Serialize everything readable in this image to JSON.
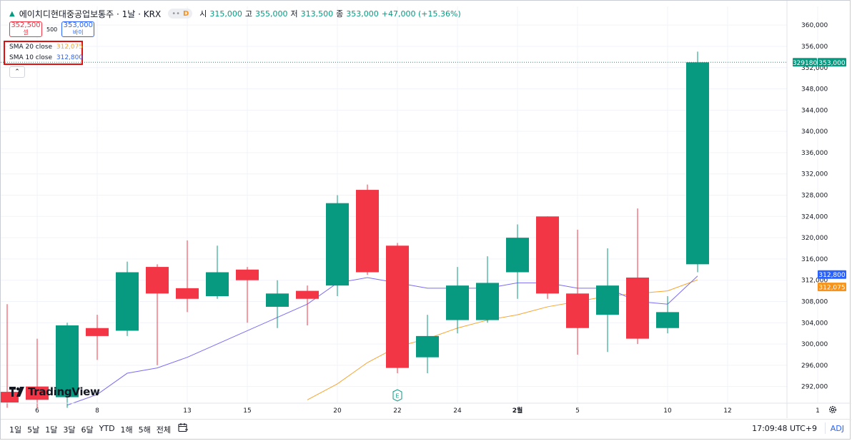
{
  "header": {
    "symbol_title": "에이치디현대중공업보통주 · 1날 · KRX",
    "badge_letter": "D",
    "ohlc": {
      "o_label": "시",
      "o": "315,000",
      "h_label": "고",
      "h": "355,000",
      "l_label": "저",
      "l": "313,500",
      "c_label": "종",
      "c": "353,000",
      "change": "+47,000 (+15.36%)"
    }
  },
  "trade": {
    "sell_price": "352,500",
    "sell_label": "셀",
    "spread": "500",
    "buy_price": "353,000",
    "buy_label": "바이"
  },
  "indicators": [
    {
      "label": "SMA 20 close",
      "value": "312,075",
      "color": "#f7a531"
    },
    {
      "label": "SMA 10 close",
      "value": "312,800",
      "color": "#2962ff"
    }
  ],
  "logo_text": "TradingView",
  "price_axis": {
    "ticks": [
      292000,
      296000,
      300000,
      304000,
      308000,
      312000,
      316000,
      320000,
      324000,
      328000,
      332000,
      336000,
      340000,
      344000,
      348000,
      352000,
      356000,
      360000
    ],
    "tick_labels": [
      "292,000",
      "296,000",
      "300,000",
      "304,000",
      "308,000",
      "312,000",
      "316,000",
      "320,000",
      "324,000",
      "328,000",
      "332,000",
      "336,000",
      "340,000",
      "344,000",
      "348,000",
      "352,000",
      "356,000",
      "360,000"
    ],
    "last_price_label": "353,000",
    "countdown_label": "329180",
    "sma10_label": "312,800",
    "sma20_label": "312,075"
  },
  "time_axis": {
    "labels": [
      {
        "i": 1,
        "text": "6"
      },
      {
        "i": 3,
        "text": "8"
      },
      {
        "i": 6,
        "text": "13"
      },
      {
        "i": 8,
        "text": "15"
      },
      {
        "i": 11,
        "text": "20"
      },
      {
        "i": 13,
        "text": "22"
      },
      {
        "i": 15,
        "text": "24"
      },
      {
        "i": 17,
        "text": "2월"
      },
      {
        "i": 19,
        "text": "5"
      },
      {
        "i": 22,
        "text": "10"
      },
      {
        "i": 24,
        "text": "12"
      },
      {
        "i": 27,
        "text": "1"
      }
    ],
    "earnings_marker": "E"
  },
  "bottom_bar": {
    "ranges": [
      "1일",
      "5날",
      "1달",
      "3달",
      "6달",
      "YTD",
      "1해",
      "5해",
      "전체"
    ],
    "clock": "17:09:48 UTC+9",
    "adj": "ADJ"
  },
  "colors": {
    "up": "#089981",
    "down": "#f23645",
    "sma10": "#7b6cf6",
    "sma20": "#f7a531"
  },
  "chart_data": {
    "type": "candlestick",
    "ylim": [
      289000,
      361500
    ],
    "candles": [
      {
        "o": 291000,
        "h": 307500,
        "l": 288000,
        "c": 289000
      },
      {
        "o": 292000,
        "h": 301000,
        "l": 288000,
        "c": 289500
      },
      {
        "o": 290000,
        "h": 304000,
        "l": 288000,
        "c": 303500
      },
      {
        "o": 303000,
        "h": 305500,
        "l": 297000,
        "c": 301500
      },
      {
        "o": 302500,
        "h": 315500,
        "l": 301500,
        "c": 313500
      },
      {
        "o": 314500,
        "h": 315000,
        "l": 296000,
        "c": 309500
      },
      {
        "o": 310500,
        "h": 319500,
        "l": 306000,
        "c": 308500
      },
      {
        "o": 309000,
        "h": 318500,
        "l": 308500,
        "c": 313500
      },
      {
        "o": 314000,
        "h": 314500,
        "l": 304000,
        "c": 312000
      },
      {
        "o": 307000,
        "h": 312000,
        "l": 303000,
        "c": 309500
      },
      {
        "o": 310000,
        "h": 311000,
        "l": 303500,
        "c": 308500
      },
      {
        "o": 311000,
        "h": 328000,
        "l": 309000,
        "c": 326500
      },
      {
        "o": 329000,
        "h": 330000,
        "l": 313000,
        "c": 313500
      },
      {
        "o": 318500,
        "h": 319000,
        "l": 294500,
        "c": 295500
      },
      {
        "o": 297500,
        "h": 305500,
        "l": 294500,
        "c": 301500
      },
      {
        "o": 304500,
        "h": 314500,
        "l": 302000,
        "c": 311000
      },
      {
        "o": 304500,
        "h": 316500,
        "l": 304000,
        "c": 311500
      },
      {
        "o": 313500,
        "h": 322500,
        "l": 308500,
        "c": 320000
      },
      {
        "o": 324000,
        "h": 324000,
        "l": 308500,
        "c": 309500
      },
      {
        "o": 309500,
        "h": 321500,
        "l": 298000,
        "c": 303000
      },
      {
        "o": 305500,
        "h": 318000,
        "l": 298500,
        "c": 311000
      },
      {
        "o": 312500,
        "h": 325500,
        "l": 300000,
        "c": 301000
      },
      {
        "o": 303000,
        "h": 309000,
        "l": 302000,
        "c": 306000
      },
      {
        "o": 315000,
        "h": 355000,
        "l": 313500,
        "c": 353000
      }
    ],
    "sma10": [
      null,
      null,
      288500,
      290500,
      294500,
      295500,
      297500,
      300000,
      302500,
      305000,
      307500,
      311500,
      312500,
      311500,
      310500,
      310500,
      310500,
      311500,
      311500,
      310500,
      310500,
      308000,
      307500,
      312800
    ],
    "sma20": [
      null,
      null,
      null,
      null,
      null,
      null,
      null,
      null,
      null,
      null,
      289500,
      292500,
      296500,
      299500,
      301000,
      303000,
      304500,
      305500,
      307000,
      308000,
      309000,
      309500,
      310000,
      312075
    ]
  }
}
